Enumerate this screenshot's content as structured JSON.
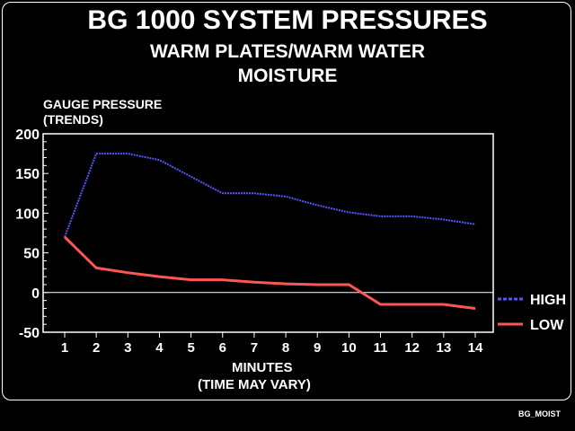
{
  "chart_data": {
    "type": "line",
    "title": "BG 1000 SYSTEM PRESSURES",
    "subtitle": [
      "WARM PLATES/WARM WATER",
      "MOISTURE"
    ],
    "ylabel": [
      "GAUGE PRESSURE",
      "(TRENDS)"
    ],
    "xlabel": [
      "MINUTES",
      "(TIME MAY VARY)"
    ],
    "x": [
      1,
      2,
      3,
      4,
      5,
      6,
      7,
      8,
      9,
      10,
      11,
      12,
      13,
      14
    ],
    "yticks": [
      200,
      150,
      100,
      50,
      0,
      -50
    ],
    "ylim": [
      -50,
      200
    ],
    "xlim": [
      0.3,
      15.3
    ],
    "legend_position": "right",
    "series": [
      {
        "name": "HIGH",
        "style": "dotted",
        "color": "#5555ff",
        "values": [
          70,
          175,
          175,
          167,
          146,
          125,
          125,
          121,
          110,
          101,
          96,
          96,
          92,
          86
        ]
      },
      {
        "name": "LOW",
        "style": "solid",
        "color": "#ff5555",
        "values": [
          70,
          31,
          25,
          20,
          16,
          16,
          13,
          11,
          10,
          10,
          -15,
          -15,
          -15,
          -20
        ]
      }
    ]
  },
  "footer_label": "BG_MOIST"
}
